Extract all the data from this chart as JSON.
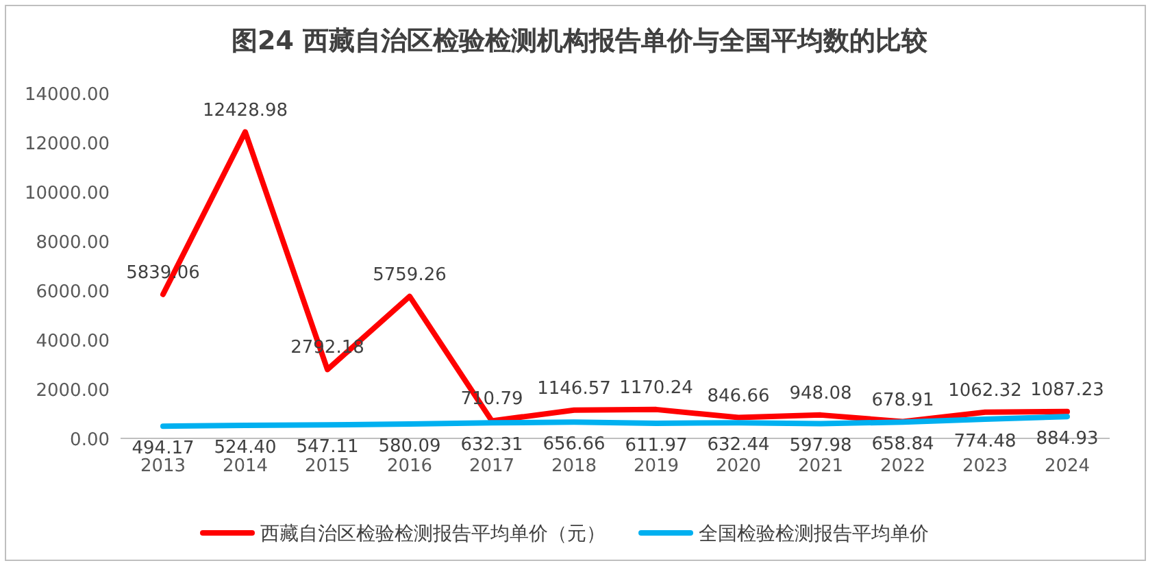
{
  "chart_data": {
    "type": "line",
    "title": "图24   西藏自治区检验检测机构报告单价与全国平均数的比较",
    "categories": [
      "2013",
      "2014",
      "2015",
      "2016",
      "2017",
      "2018",
      "2019",
      "2020",
      "2021",
      "2022",
      "2023",
      "2024"
    ],
    "series": [
      {
        "name": "西藏自治区检验检测报告平均单价（元）",
        "color": "#ff0000",
        "values": [
          5839.06,
          12428.98,
          2792.18,
          5759.26,
          710.79,
          1146.57,
          1170.24,
          846.66,
          948.08,
          678.91,
          1062.32,
          1087.23
        ],
        "value_labels": [
          "5839.06",
          "12428.98",
          "2792.18",
          "5759.26",
          "710.79",
          "1146.57",
          "1170.24",
          "846.66",
          "948.08",
          "678.91",
          "1062.32",
          "1087.23"
        ]
      },
      {
        "name": "全国检验检测报告平均单价",
        "color": "#00b0f0",
        "values": [
          494.17,
          524.4,
          547.11,
          580.09,
          632.31,
          656.66,
          611.97,
          632.44,
          597.98,
          658.84,
          774.48,
          884.93
        ],
        "value_labels": [
          "494.17",
          "524.40",
          "547.11",
          "580.09",
          "632.31",
          "656.66",
          "611.97",
          "632.44",
          "597.98",
          "658.84",
          "774.48",
          "884.93"
        ]
      }
    ],
    "ylim": [
      0,
      14000
    ],
    "yticks": [
      {
        "value": 0,
        "label": "0.00"
      },
      {
        "value": 2000,
        "label": "2000.00"
      },
      {
        "value": 4000,
        "label": "4000.00"
      },
      {
        "value": 6000,
        "label": "6000.00"
      },
      {
        "value": 8000,
        "label": "8000.00"
      },
      {
        "value": 10000,
        "label": "10000.00"
      },
      {
        "value": 12000,
        "label": "12000.00"
      },
      {
        "value": 14000,
        "label": "14000.00"
      }
    ],
    "grid": false,
    "legend": "bottom",
    "marker": "none",
    "line_style": "solid"
  }
}
